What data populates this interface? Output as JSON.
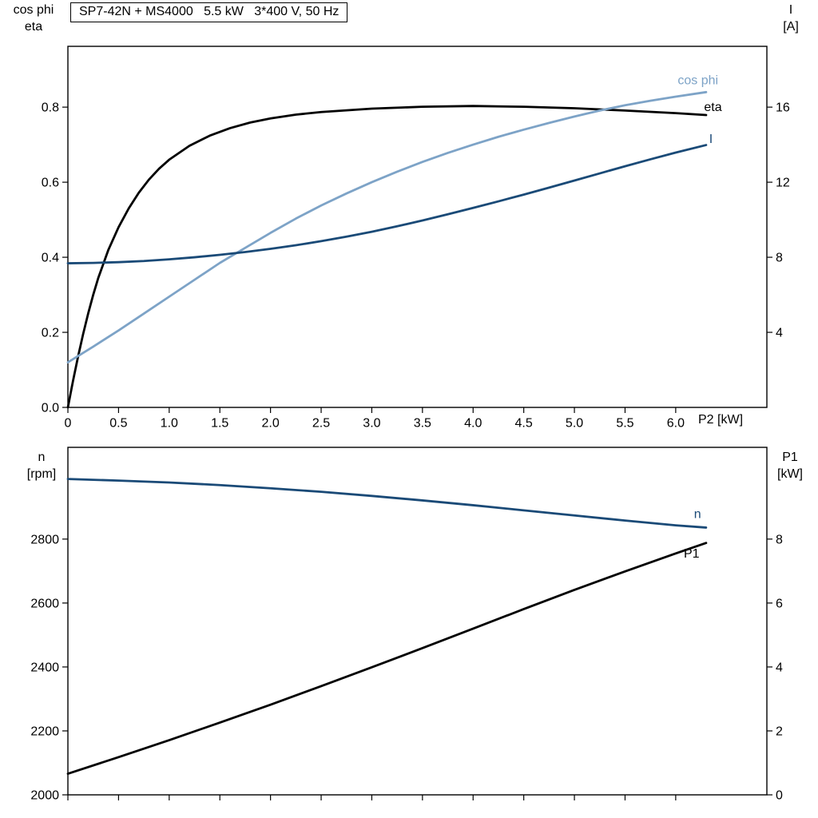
{
  "colors": {
    "black": "#000000",
    "dark_blue": "#1a4a77",
    "light_blue": "#7da3c7",
    "frame": "#000000"
  },
  "chart_data": [
    {
      "type": "line",
      "title": "SP7-42N + MS4000   5.5 kW   3*400 V, 50 Hz",
      "x_axis": {
        "label": "P2 [kW]",
        "range": [
          0,
          6.9
        ],
        "ticks": [
          0,
          0.5,
          1.0,
          1.5,
          2.0,
          2.5,
          3.0,
          3.5,
          4.0,
          4.5,
          5.0,
          5.5,
          6.0
        ],
        "tick_labels": [
          "0",
          "0.5",
          "1.0",
          "1.5",
          "2.0",
          "2.5",
          "3.0",
          "3.5",
          "4.0",
          "4.5",
          "5.0",
          "5.5",
          "6.0"
        ]
      },
      "y_axis_left": {
        "title_lines": [
          "cos phi",
          "eta"
        ],
        "range": [
          0,
          0.962
        ],
        "ticks": [
          0.0,
          0.2,
          0.4,
          0.6,
          0.8
        ],
        "tick_labels": [
          "0.0",
          "0.2",
          "0.4",
          "0.6",
          "0.8"
        ]
      },
      "y_axis_right": {
        "title_lines": [
          "I",
          "[A]"
        ],
        "range": [
          0,
          19.24
        ],
        "ticks": [
          4,
          8,
          12,
          16
        ],
        "tick_labels": [
          "4",
          "8",
          "12",
          "16"
        ]
      },
      "series": [
        {
          "name": "eta",
          "axis": "left",
          "color": "#000000",
          "x": [
            0,
            0.05,
            0.1,
            0.15,
            0.2,
            0.25,
            0.3,
            0.4,
            0.5,
            0.6,
            0.7,
            0.8,
            0.9,
            1.0,
            1.2,
            1.4,
            1.6,
            1.8,
            2.0,
            2.25,
            2.5,
            3.0,
            3.5,
            4.0,
            4.5,
            5.0,
            5.5,
            6.0,
            6.3
          ],
          "y": [
            0,
            0.07,
            0.135,
            0.195,
            0.25,
            0.3,
            0.345,
            0.42,
            0.48,
            0.53,
            0.572,
            0.607,
            0.636,
            0.66,
            0.697,
            0.724,
            0.744,
            0.759,
            0.77,
            0.78,
            0.787,
            0.796,
            0.801,
            0.803,
            0.801,
            0.797,
            0.791,
            0.784,
            0.779
          ]
        },
        {
          "name": "cos phi",
          "axis": "left",
          "color": "#7da3c7",
          "x": [
            0,
            0.25,
            0.5,
            0.75,
            1.0,
            1.25,
            1.5,
            1.75,
            2.0,
            2.25,
            2.5,
            2.75,
            3.0,
            3.25,
            3.5,
            3.75,
            4.0,
            4.25,
            4.5,
            4.75,
            5.0,
            5.25,
            5.5,
            5.75,
            6.0,
            6.3
          ],
          "y": [
            0.12,
            0.162,
            0.205,
            0.25,
            0.295,
            0.34,
            0.385,
            0.425,
            0.465,
            0.503,
            0.538,
            0.57,
            0.6,
            0.628,
            0.654,
            0.678,
            0.7,
            0.721,
            0.74,
            0.758,
            0.775,
            0.791,
            0.805,
            0.817,
            0.828,
            0.84
          ]
        },
        {
          "name": "I",
          "axis": "right",
          "color": "#1a4a77",
          "x": [
            0,
            0.25,
            0.5,
            0.75,
            1.0,
            1.25,
            1.5,
            1.75,
            2.0,
            2.25,
            2.5,
            2.75,
            3.0,
            3.25,
            3.5,
            3.75,
            4.0,
            4.25,
            4.5,
            4.75,
            5.0,
            5.25,
            5.5,
            5.75,
            6.0,
            6.3
          ],
          "y": [
            7.68,
            7.7,
            7.74,
            7.8,
            7.89,
            8.0,
            8.13,
            8.28,
            8.45,
            8.64,
            8.86,
            9.1,
            9.36,
            9.65,
            9.96,
            10.29,
            10.63,
            10.98,
            11.34,
            11.71,
            12.09,
            12.47,
            12.85,
            13.22,
            13.58,
            13.98
          ]
        }
      ],
      "annotations": [
        {
          "text": "cos phi",
          "color": "#7da3c7",
          "axis": "left",
          "x": 6.02,
          "y": 0.872
        },
        {
          "text": "eta",
          "color": "#000000",
          "axis": "left",
          "x": 6.28,
          "y": 0.8
        },
        {
          "text": "I",
          "color": "#1a4a77",
          "axis": "left",
          "x": 6.33,
          "y": 0.715
        }
      ]
    },
    {
      "type": "line",
      "title": "",
      "x_axis": {
        "label": "",
        "range": [
          0,
          6.9
        ],
        "ticks": [
          0,
          0.5,
          1.0,
          1.5,
          2.0,
          2.5,
          3.0,
          3.5,
          4.0,
          4.5,
          5.0,
          5.5,
          6.0
        ],
        "tick_labels": []
      },
      "y_axis_left": {
        "title_lines": [
          "n",
          "[rpm]"
        ],
        "range": [
          2000,
          3087
        ],
        "ticks": [
          2000,
          2200,
          2400,
          2600,
          2800
        ],
        "tick_labels": [
          "2000",
          "2200",
          "2400",
          "2600",
          "2800"
        ]
      },
      "y_axis_right": {
        "title_lines": [
          "P1",
          "[kW]"
        ],
        "range": [
          0,
          10.87
        ],
        "ticks": [
          0,
          2,
          4,
          6,
          8
        ],
        "tick_labels": [
          "0",
          "2",
          "4",
          "6",
          "8"
        ]
      },
      "series": [
        {
          "name": "n",
          "axis": "left",
          "color": "#1a4a77",
          "x": [
            0,
            0.5,
            1.0,
            1.5,
            2.0,
            2.5,
            3.0,
            3.5,
            4.0,
            4.5,
            5.0,
            5.5,
            6.0,
            6.3
          ],
          "y": [
            2988,
            2983,
            2977,
            2969,
            2959,
            2948,
            2935,
            2921,
            2906,
            2890,
            2874,
            2858,
            2843,
            2836
          ]
        },
        {
          "name": "P1",
          "axis": "right",
          "color": "#000000",
          "x": [
            0,
            0.5,
            1.0,
            1.5,
            2.0,
            2.5,
            3.0,
            3.5,
            4.0,
            4.5,
            5.0,
            5.5,
            6.0,
            6.3
          ],
          "y": [
            0.66,
            1.18,
            1.71,
            2.26,
            2.82,
            3.4,
            3.99,
            4.59,
            5.2,
            5.81,
            6.41,
            6.99,
            7.55,
            7.88
          ]
        }
      ],
      "annotations": [
        {
          "text": "n",
          "color": "#1a4a77",
          "axis": "left",
          "x": 6.18,
          "y": 2878
        },
        {
          "text": "P1",
          "color": "#000000",
          "axis": "right",
          "x": 6.08,
          "y": 7.55
        }
      ]
    }
  ]
}
